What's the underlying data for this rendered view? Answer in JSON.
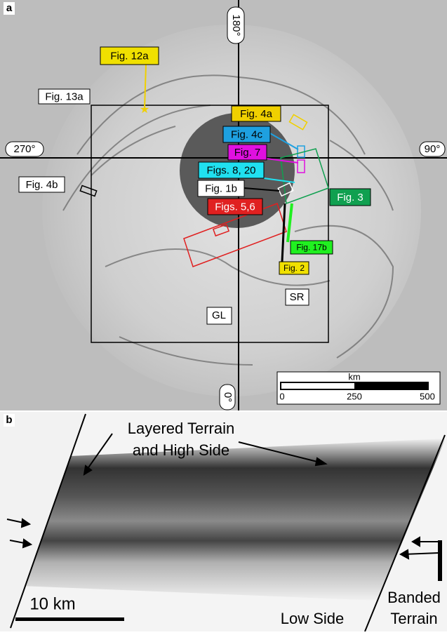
{
  "panel_a": {
    "letter": "a",
    "lon_180": "180°",
    "lon_270": "270°",
    "lon_90": "90°",
    "lon_0": "0°",
    "labels": [
      "Fig. 12a",
      "Fig. 13a",
      "Fig. 4a",
      "Fig. 4c",
      "Fig. 7",
      "Figs. 8, 20",
      "Fig. 1b",
      "Figs. 5,6",
      "Fig. 3",
      "Fig. 4b",
      "Fig. 17b",
      "Fig. 2"
    ],
    "regions": [
      "GL",
      "SR"
    ],
    "scale": {
      "unit": "km",
      "ticks": [
        0,
        250,
        500
      ]
    }
  },
  "panel_b": {
    "letter": "b",
    "top_label": [
      "Layered Terrain",
      "and High Side"
    ],
    "bottom_label": "Low Side",
    "right_label": [
      "Banded",
      "Terrain"
    ],
    "scale": "10 km"
  }
}
